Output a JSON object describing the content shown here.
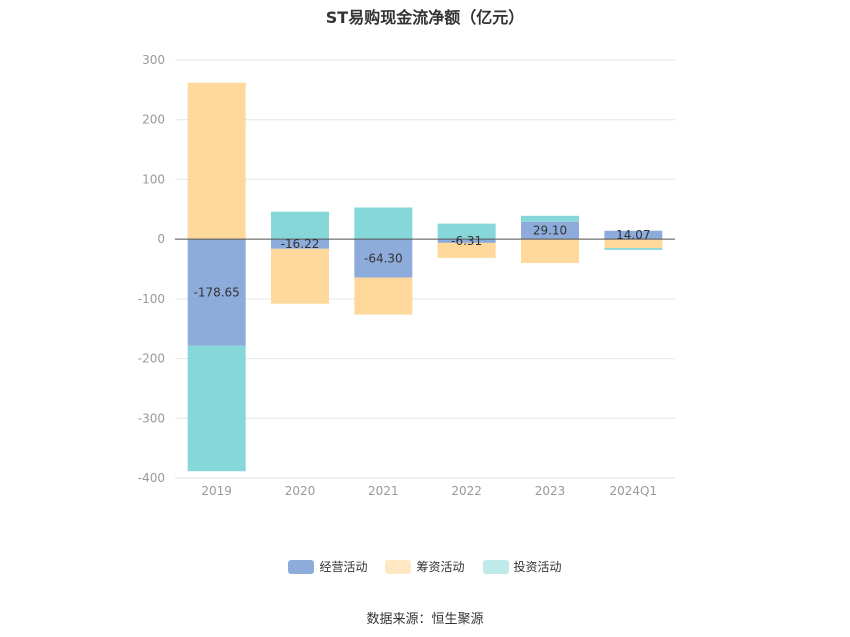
{
  "chart_data": {
    "type": "bar",
    "stacked": true,
    "title": "ST易购现金流净额（亿元）",
    "categories": [
      "2019",
      "2020",
      "2021",
      "2022",
      "2023",
      "2024Q1"
    ],
    "ylim": [
      -400,
      300
    ],
    "yticks": [
      300,
      200,
      100,
      0,
      -100,
      -200,
      -300,
      -400
    ],
    "grid": true,
    "legend_position": "bottom",
    "series": [
      {
        "name": "经营活动",
        "color": "#8eacdb",
        "values": [
          -178.65,
          -16.22,
          -64.3,
          -6.31,
          29.1,
          14.07
        ]
      },
      {
        "name": "筹资活动",
        "color": "#fed99b",
        "values": [
          262,
          -92,
          -62,
          -25,
          -40,
          -15
        ]
      },
      {
        "name": "投资活动",
        "color": "#86d7d9",
        "values": [
          -210,
          46,
          53,
          26,
          10,
          -3
        ]
      }
    ],
    "data_labels": [
      "-178.65",
      "-16.22",
      "-64.30",
      "-6.31",
      "29.10",
      "14.07"
    ],
    "legend_colors": [
      "#8eacdb",
      "#fee8c3",
      "#c0e9ea"
    ],
    "source": "数据来源：恒生聚源"
  }
}
